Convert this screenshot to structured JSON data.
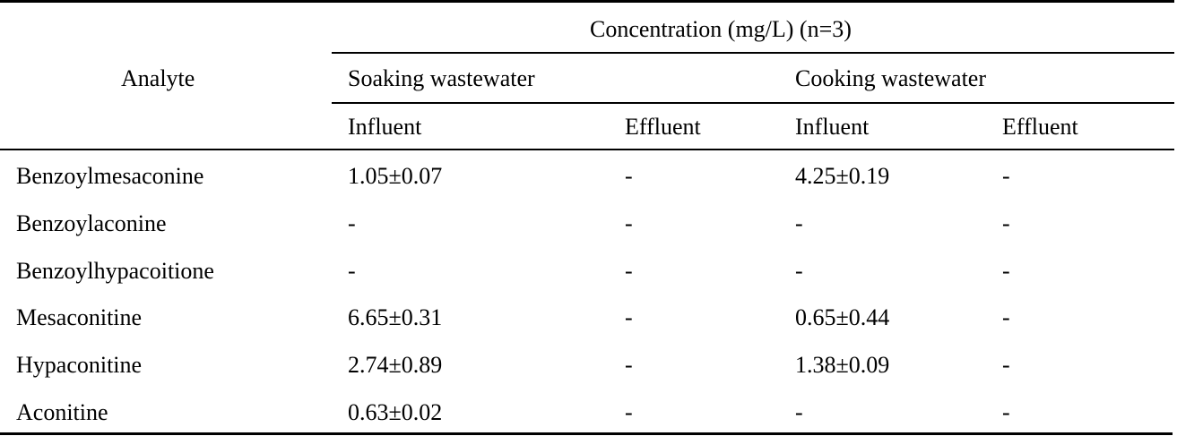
{
  "table": {
    "header": {
      "analyte": "Analyte",
      "concentration": "Concentration (mg/L) (n=3)",
      "groups": [
        "Soaking wastewater",
        "Cooking wastewater"
      ],
      "subcolumns": [
        "Influent",
        "Effluent",
        "Influent",
        "Effluent"
      ]
    },
    "rows": [
      {
        "analyte": "Benzoylmesaconine",
        "values": [
          "1.05±0.07",
          "-",
          "4.25±0.19",
          "-"
        ]
      },
      {
        "analyte": "Benzoylaconine",
        "values": [
          "-",
          "-",
          "-",
          "-"
        ]
      },
      {
        "analyte": "Benzoylhypacoitione",
        "values": [
          "-",
          "-",
          "-",
          "-"
        ]
      },
      {
        "analyte": "Mesaconitine",
        "values": [
          "6.65±0.31",
          "-",
          "0.65±0.44",
          "-"
        ]
      },
      {
        "analyte": "Hypaconitine",
        "values": [
          "2.74±0.89",
          "-",
          "1.38±0.09",
          "-"
        ]
      },
      {
        "analyte": "Aconitine",
        "values": [
          "0.63±0.02",
          "-",
          "-",
          "-"
        ]
      }
    ]
  }
}
